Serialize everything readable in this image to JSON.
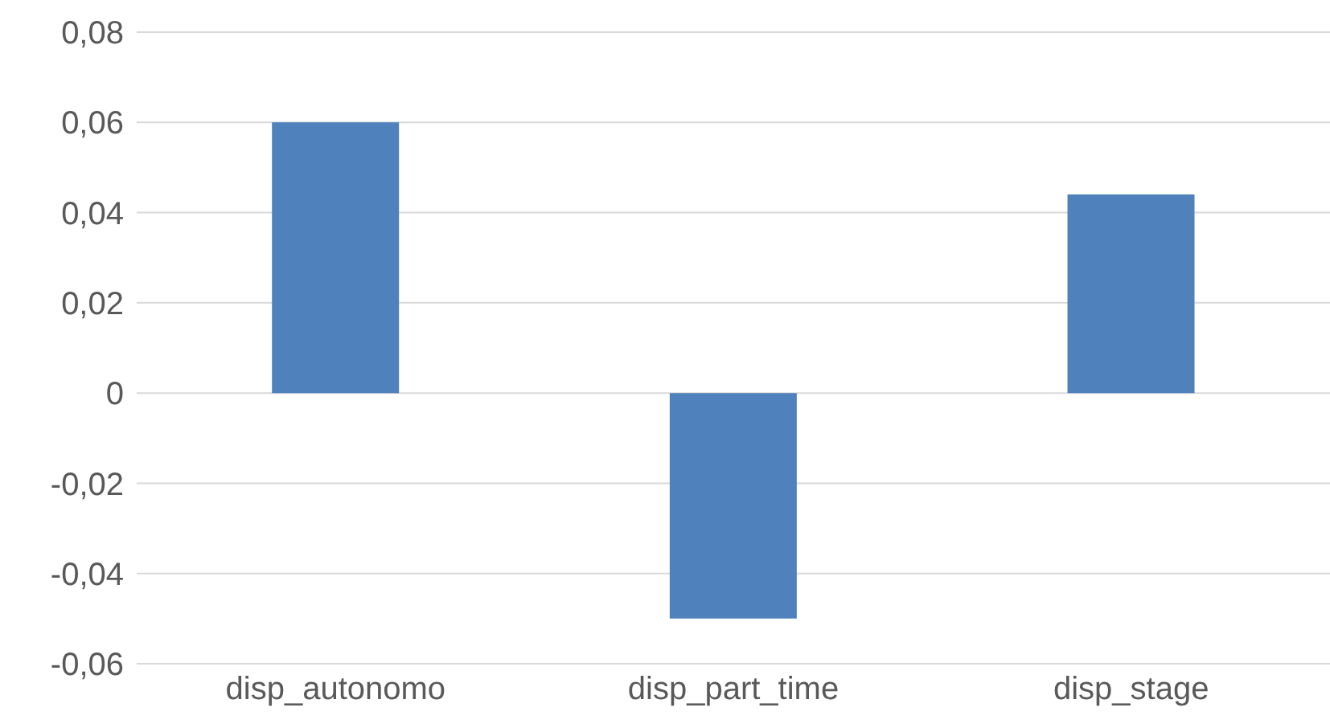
{
  "chart_data": {
    "type": "bar",
    "categories": [
      "disp_autonomo",
      "disp_part_time",
      "disp_stage"
    ],
    "series": [
      {
        "color": "#4f81bd",
        "values": [
          0.06,
          -0.05,
          0.044
        ]
      }
    ],
    "ylim": [
      -0.06,
      0.08
    ],
    "yticks": [
      {
        "value": -0.06,
        "label": "-0,06"
      },
      {
        "value": -0.04,
        "label": "-0,04"
      },
      {
        "value": -0.02,
        "label": "-0,02"
      },
      0,
      {
        "value": 0.02,
        "label": "0,02"
      },
      {
        "value": 0.04,
        "label": "0,04"
      },
      {
        "value": 0.06,
        "label": "0,06"
      },
      {
        "value": 0.08,
        "label": "0,08"
      }
    ],
    "grid": "y"
  }
}
